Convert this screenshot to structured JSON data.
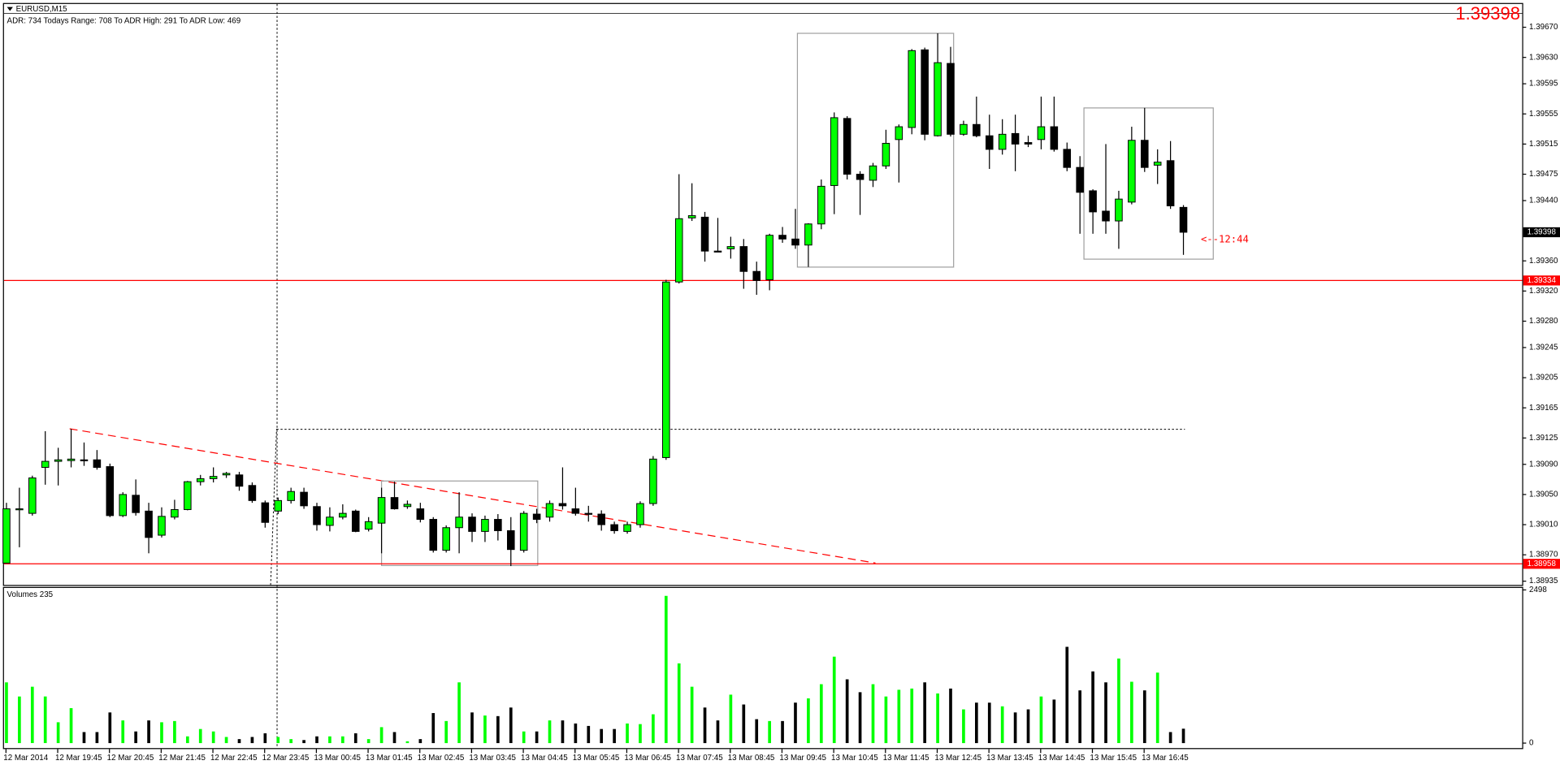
{
  "chart_data": {
    "type": "candlestick",
    "title": "EURUSD,M15",
    "subtitle": "ADR: 734  Todays Range: 708  To ADR High: 291  To ADR Low: 469",
    "annotation": "<--12:44",
    "volume_title": "Volumes 235",
    "up_color": "#00ff00",
    "down_color": "#000000",
    "ylim": [
      1.3893,
      1.39689
    ],
    "yticks": [
      {
        "value": 1.3967,
        "label": "1.39670"
      },
      {
        "value": 1.3963,
        "label": "1.39630"
      },
      1.39595,
      1.39555,
      1.39515,
      1.39475,
      {
        "value": 1.3944,
        "label": "1.39440"
      },
      {
        "value": 1.3936,
        "label": "1.39360"
      },
      {
        "value": 1.3932,
        "label": "1.39320"
      },
      {
        "value": 1.3928,
        "label": "1.39280"
      },
      1.39245,
      1.39205,
      1.39165,
      1.39125,
      {
        "value": 1.3909,
        "label": "1.39090"
      },
      {
        "value": 1.3905,
        "label": "1.39050"
      },
      {
        "value": 1.3901,
        "label": "1.39010"
      },
      {
        "value": 1.3897,
        "label": "1.38970"
      },
      1.38935
    ],
    "hlines": [
      {
        "value": 1.39334,
        "color": "#ff0000"
      },
      {
        "value": 1.38958,
        "color": "#ff0000"
      }
    ],
    "volume_ylim": [
      0,
      2498
    ],
    "volume_yticks": [
      0,
      2498
    ],
    "categories": [
      "12 Mar 2014",
      null,
      null,
      null,
      "12 Mar 19:45",
      null,
      null,
      null,
      "12 Mar 20:45",
      null,
      null,
      null,
      "12 Mar 21:45",
      null,
      null,
      null,
      "12 Mar 22:45",
      null,
      null,
      null,
      "12 Mar 23:45",
      null,
      null,
      null,
      "13 Mar 00:45",
      null,
      null,
      null,
      "13 Mar 01:45",
      null,
      null,
      null,
      "13 Mar 02:45",
      null,
      null,
      null,
      "13 Mar 03:45",
      null,
      null,
      null,
      "13 Mar 04:45",
      null,
      null,
      null,
      "13 Mar 05:45",
      null,
      null,
      null,
      "13 Mar 06:45",
      null,
      null,
      null,
      "13 Mar 07:45",
      null,
      null,
      null,
      "13 Mar 08:45",
      null,
      null,
      null,
      "13 Mar 09:45",
      null,
      null,
      null,
      "13 Mar 10:45",
      null,
      null,
      null,
      "13 Mar 11:45",
      null,
      null,
      null,
      "13 Mar 12:45",
      null,
      null,
      null,
      "13 Mar 13:45",
      null,
      null,
      null,
      "13 Mar 14:45",
      null,
      null,
      null,
      "13 Mar 15:45",
      null,
      null,
      null,
      "13 Mar 16:45",
      null,
      null,
      null
    ],
    "open": [
      1.38959,
      1.3903,
      1.39025,
      1.39086,
      1.39094,
      1.39095,
      1.39096,
      1.39096,
      1.39087,
      1.39022,
      1.39049,
      1.39028,
      1.38996,
      1.3902,
      1.3903,
      1.39067,
      1.39071,
      1.39076,
      1.39076,
      1.39062,
      1.39039,
      1.39028,
      1.39042,
      1.39053,
      1.39034,
      1.39009,
      1.3902,
      1.39028,
      1.39004,
      1.39012,
      1.39046,
      1.39034,
      1.39031,
      1.39017,
      1.38976,
      1.39006,
      1.3902,
      1.39001,
      1.39017,
      1.39002,
      1.38976,
      1.39024,
      1.3902,
      1.39038,
      1.39031,
      1.39025,
      1.39024,
      1.3901,
      1.39001,
      1.3901,
      1.39038,
      1.39099,
      1.39332,
      1.39417,
      1.39418,
      1.39373,
      1.39376,
      1.39379,
      1.39346,
      1.39335,
      1.39394,
      1.39389,
      1.39381,
      1.39409,
      1.3946,
      1.39549,
      1.39475,
      1.39467,
      1.39486,
      1.39521,
      1.39537,
      1.3964,
      1.39526,
      1.39622,
      1.39528,
      1.39541,
      1.39526,
      1.39508,
      1.39529,
      1.39517,
      1.39521,
      1.39538,
      1.39508,
      1.39484,
      1.39453,
      1.39426,
      1.39413,
      1.39438,
      1.3952,
      1.39487,
      1.39493,
      1.39431
    ],
    "high": [
      1.39039,
      1.39059,
      1.39075,
      1.39134,
      1.39112,
      1.39137,
      1.39119,
      1.39109,
      1.39091,
      1.39053,
      1.3907,
      1.39039,
      1.39033,
      1.39043,
      1.39068,
      1.39076,
      1.39086,
      1.3908,
      1.3908,
      1.39066,
      1.39042,
      1.39046,
      1.39059,
      1.39059,
      1.39039,
      1.39033,
      1.39037,
      1.3903,
      1.3902,
      1.39059,
      1.39067,
      1.39042,
      1.39039,
      1.3902,
      1.39009,
      1.39053,
      1.39025,
      1.39022,
      1.39024,
      1.3902,
      1.39028,
      1.39031,
      1.39042,
      1.39086,
      1.39059,
      1.39035,
      1.39029,
      1.39014,
      1.39014,
      1.39041,
      1.39101,
      1.39335,
      1.39475,
      1.39463,
      1.39425,
      1.39417,
      1.39392,
      1.39389,
      1.39359,
      1.39396,
      1.39405,
      1.39429,
      1.3941,
      1.39468,
      1.39557,
      1.39552,
      1.39479,
      1.3949,
      1.39534,
      1.39541,
      1.39641,
      1.39643,
      1.39662,
      1.39644,
      1.39546,
      1.39578,
      1.39554,
      1.39548,
      1.39554,
      1.39526,
      1.39578,
      1.39578,
      1.39517,
      1.39499,
      1.39455,
      1.39515,
      1.39453,
      1.39538,
      1.39563,
      1.39508,
      1.39519,
      1.39434
    ],
    "low": [
      1.38959,
      1.3898,
      1.39022,
      1.39063,
      1.39062,
      1.39086,
      1.39088,
      1.39083,
      1.3902,
      1.3902,
      1.39022,
      1.38972,
      1.38993,
      1.39017,
      1.39029,
      1.39062,
      1.39066,
      1.39072,
      1.39055,
      1.39039,
      1.39006,
      1.39024,
      1.39038,
      1.39031,
      1.39002,
      1.39001,
      1.39017,
      1.39,
      1.39001,
      1.38972,
      1.3903,
      1.39031,
      1.39013,
      1.38973,
      1.38973,
      1.38972,
      1.38987,
      1.38987,
      1.38989,
      1.38955,
      1.38973,
      1.39012,
      1.39014,
      1.3903,
      1.39022,
      1.39014,
      1.39002,
      1.38998,
      1.38998,
      1.39006,
      1.39035,
      1.39096,
      1.3933,
      1.39413,
      1.39359,
      1.39372,
      1.39363,
      1.39323,
      1.39315,
      1.39321,
      1.39384,
      1.39376,
      1.39352,
      1.39402,
      1.39422,
      1.39468,
      1.39421,
      1.39458,
      1.39482,
      1.39464,
      1.39528,
      1.3952,
      1.39525,
      1.39525,
      1.39526,
      1.39524,
      1.39482,
      1.39501,
      1.39479,
      1.39511,
      1.39508,
      1.39505,
      1.39479,
      1.39396,
      1.39396,
      1.39396,
      1.39376,
      1.39435,
      1.39478,
      1.39462,
      1.39429,
      1.39368
    ],
    "close": [
      1.39031,
      1.39031,
      1.39072,
      1.39094,
      1.39096,
      1.39097,
      1.39095,
      1.39086,
      1.39022,
      1.3905,
      1.39026,
      1.38993,
      1.39021,
      1.3903,
      1.39067,
      1.39071,
      1.39074,
      1.39078,
      1.39061,
      1.39042,
      1.39013,
      1.39042,
      1.39054,
      1.39035,
      1.3901,
      1.3902,
      1.39025,
      1.39001,
      1.39014,
      1.39046,
      1.39031,
      1.39037,
      1.39017,
      1.38976,
      1.39006,
      1.3902,
      1.39001,
      1.39017,
      1.39002,
      1.38977,
      1.39025,
      1.39017,
      1.39038,
      1.39035,
      1.39025,
      1.39024,
      1.3901,
      1.39002,
      1.3901,
      1.39038,
      1.39097,
      1.39332,
      1.39416,
      1.3942,
      1.39373,
      1.39372,
      1.39379,
      1.39346,
      1.39334,
      1.39394,
      1.39389,
      1.39381,
      1.39409,
      1.39459,
      1.3955,
      1.39475,
      1.39468,
      1.39486,
      1.39516,
      1.39538,
      1.39639,
      1.39528,
      1.39623,
      1.39528,
      1.39541,
      1.39526,
      1.39508,
      1.39528,
      1.39515,
      1.39515,
      1.39538,
      1.39508,
      1.39484,
      1.39451,
      1.39425,
      1.39413,
      1.39442,
      1.3952,
      1.39484,
      1.39491,
      1.39433,
      1.39398
    ],
    "volume": [
      990,
      760,
      920,
      760,
      340,
      570,
      180,
      180,
      500,
      370,
      190,
      370,
      340,
      360,
      110,
      230,
      190,
      100,
      65,
      100,
      160,
      100,
      65,
      50,
      110,
      110,
      110,
      160,
      65,
      260,
      180,
      30,
      65,
      490,
      360,
      990,
      500,
      450,
      440,
      580,
      190,
      190,
      370,
      370,
      320,
      280,
      230,
      230,
      320,
      310,
      470,
      2400,
      1300,
      920,
      580,
      370,
      790,
      630,
      390,
      360,
      360,
      660,
      730,
      960,
      1410,
      1040,
      830,
      960,
      760,
      870,
      890,
      990,
      810,
      890,
      550,
      660,
      660,
      600,
      500,
      550,
      760,
      710,
      1570,
      860,
      1170,
      990,
      1380,
      1000,
      860,
      1150,
      180,
      235
    ]
  }
}
